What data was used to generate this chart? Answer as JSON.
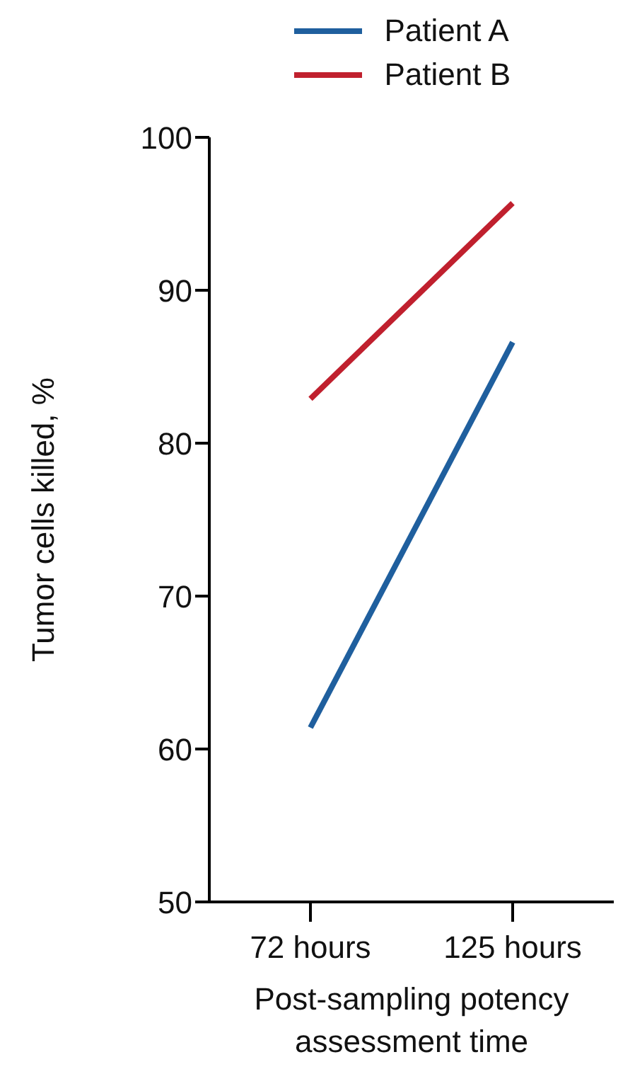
{
  "chart_data": {
    "type": "line",
    "categories": [
      "72 hours",
      "125 hours"
    ],
    "series": [
      {
        "name": "Patient A",
        "color": "#1f5f9e",
        "values": [
          61.4,
          86.6
        ]
      },
      {
        "name": "Patient B",
        "color": "#c0202e",
        "values": [
          82.9,
          95.7
        ]
      }
    ],
    "xlabel": "Post-sampling potency assessment time",
    "ylabel": "Tumor cells killed, %",
    "ylim": [
      50,
      100
    ],
    "yticks": [
      50,
      60,
      70,
      80,
      90,
      100
    ],
    "legend": "top right",
    "grid": false,
    "marker": "none",
    "line_style": "solid"
  }
}
